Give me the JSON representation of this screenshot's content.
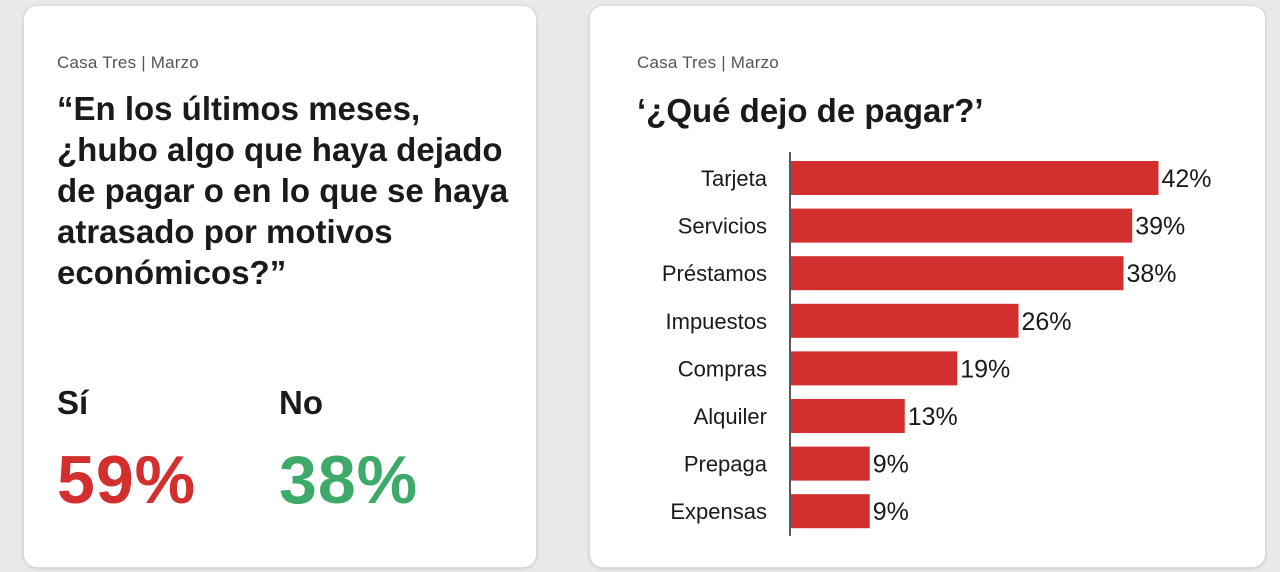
{
  "left_card": {
    "source": "Casa Tres | Marzo",
    "question": "“En los últimos meses, ¿hubo algo que haya dejado de pagar o en lo que se haya atrasado por motivos económicos?”",
    "answers": [
      {
        "label": "Sí",
        "value": "59%",
        "color": "#d32f2f"
      },
      {
        "label": "No",
        "value": "38%",
        "color": "#3daa6a"
      }
    ]
  },
  "right_card": {
    "source": "Casa Tres | Marzo"
  },
  "chart_data": {
    "type": "bar",
    "orientation": "horizontal",
    "title": "‘¿Qué dejo de pagar?’",
    "categories": [
      "Tarjeta",
      "Servicios",
      "Préstamos",
      "Impuestos",
      "Compras",
      "Alquiler",
      "Prepaga",
      "Expensas"
    ],
    "values": [
      42,
      39,
      38,
      26,
      19,
      13,
      9,
      9
    ],
    "value_labels": [
      "42%",
      "39%",
      "38%",
      "26%",
      "19%",
      "13%",
      "9%",
      "9%"
    ],
    "unit": "%",
    "bar_color": "#d32f2f",
    "grid": false,
    "legend": "none"
  }
}
